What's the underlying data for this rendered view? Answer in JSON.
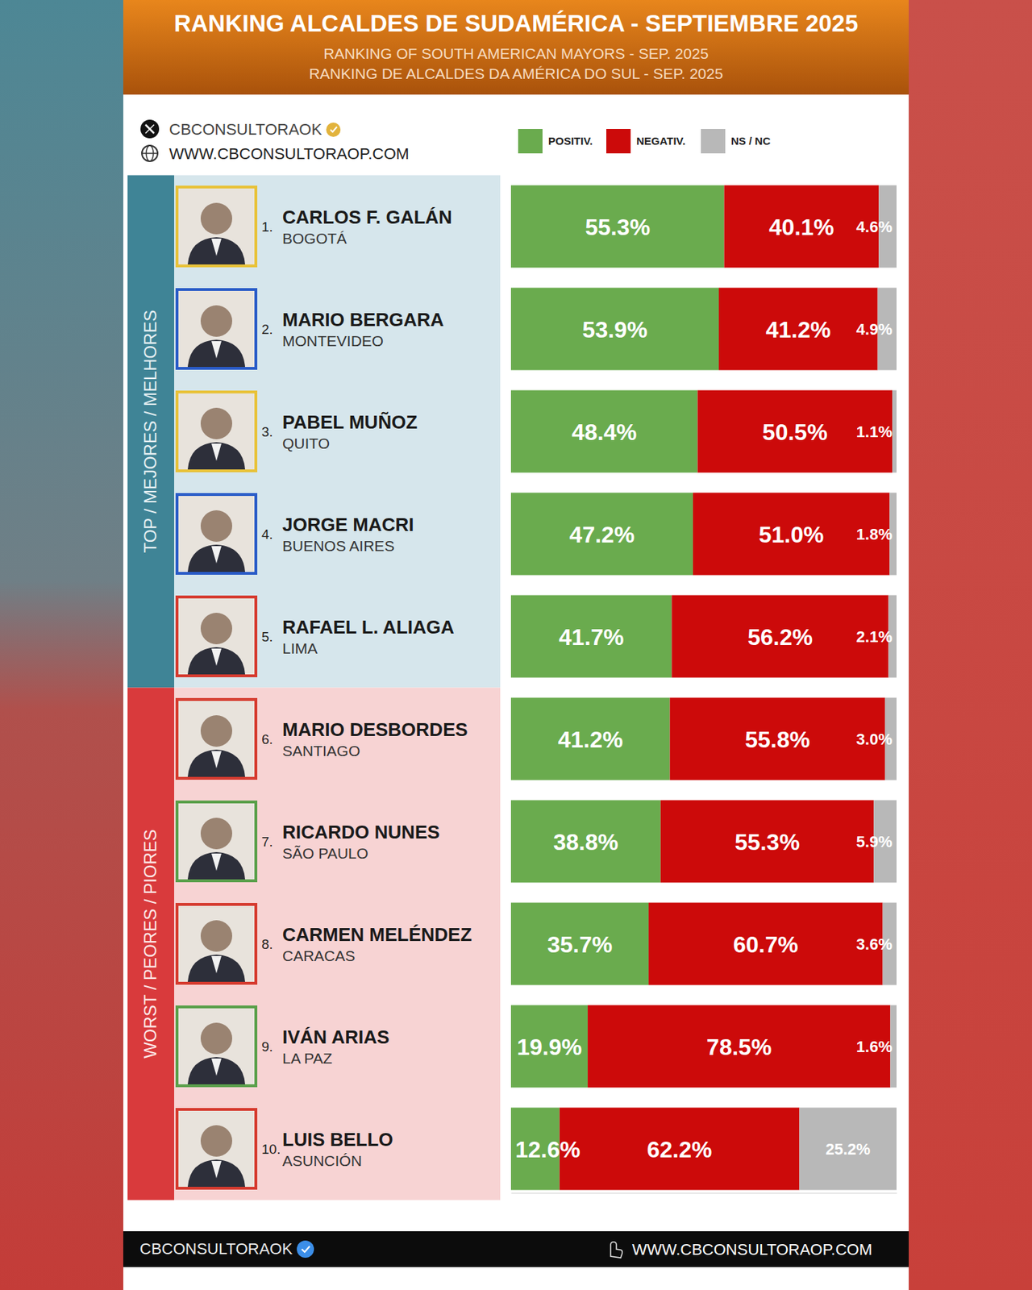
{
  "chart_data": {
    "type": "bar",
    "orientation": "horizontal",
    "stacked": true,
    "data_labels": true,
    "tick_labels": false,
    "legend": "top-right",
    "title": "RANKING ALCALDES DE SUDAMÉRICA - SEPTIEMBRE 2025",
    "subtitle": [
      "RANKING OF SOUTH AMERICAN MAYORS - SEP. 2025",
      "RANKING DE ALCALDES DA AMÉRICA DO SUL - SEP. 2025"
    ],
    "source": {
      "handle": "CBCONSULTORAOK",
      "website": "WWW.CBCONSULTORAOP.COM"
    },
    "footer": {
      "handle": "CBCONSULTORAOK",
      "website": "WWW.CBCONSULTORAOP.COM"
    },
    "groups": [
      "TOP / MEJORES / MELHORES",
      "WORST / PEORES / PIORES"
    ],
    "category_group": [
      0,
      0,
      0,
      0,
      0,
      1,
      1,
      1,
      1,
      1
    ],
    "ranks": [
      "1.",
      "2.",
      "3.",
      "4.",
      "5.",
      "6.",
      "7.",
      "8.",
      "9.",
      "10."
    ],
    "categories": [
      "CARLOS F. GALÁN",
      "MARIO BERGARA",
      "PABEL MUÑOZ",
      "JORGE MACRI",
      "RAFAEL L. ALIAGA",
      "MARIO DESBORDES",
      "RICARDO NUNES",
      "CARMEN MELÉNDEZ",
      "IVÁN ARIAS",
      "LUIS BELLO"
    ],
    "cities": [
      "BOGOTÁ",
      "MONTEVIDEO",
      "QUITO",
      "BUENOS AIRES",
      "LIMA",
      "SANTIAGO",
      "SÃO PAULO",
      "CARACAS",
      "LA PAZ",
      "ASUNCIÓN"
    ],
    "xlim": [
      0,
      100
    ],
    "series": [
      {
        "name": "POSITIV.",
        "color": "#6aab4e",
        "values": [
          55.3,
          53.9,
          48.4,
          47.2,
          41.7,
          41.2,
          38.8,
          35.7,
          19.9,
          12.6
        ],
        "value_labels": [
          "55.3%",
          "53.9%",
          "48.4%",
          "47.2%",
          "41.7%",
          "41.2%",
          "38.8%",
          "35.7%",
          "19.9%",
          "12.6%"
        ]
      },
      {
        "name": "NEGATIV.",
        "color": "#cc0a0a",
        "values": [
          40.1,
          41.2,
          50.5,
          51.0,
          56.2,
          55.8,
          55.3,
          60.7,
          78.5,
          62.2
        ],
        "value_labels": [
          "40.1%",
          "41.2%",
          "50.5%",
          "51.0%",
          "56.2%",
          "55.8%",
          "55.3%",
          "60.7%",
          "78.5%",
          "62.2%"
        ]
      },
      {
        "name": "NS / NC",
        "color": "#b8b8b8",
        "values": [
          4.6,
          4.9,
          1.1,
          1.8,
          2.1,
          3.0,
          5.9,
          3.6,
          1.6,
          25.2
        ],
        "value_labels": [
          "4.6%",
          "4.9%",
          "1.1%",
          "1.8%",
          "2.1%",
          "3.0%",
          "5.9%",
          "3.6%",
          "1.6%",
          "25.2%"
        ]
      }
    ]
  }
}
